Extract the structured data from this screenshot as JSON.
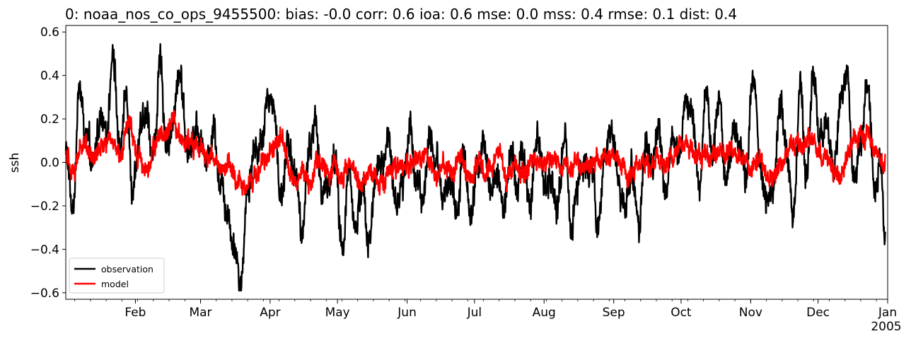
{
  "chart_data": {
    "type": "line",
    "title": "0: noaa_nos_co_ops_9455500: bias: -0.0  corr: 0.6  ioa: 0.6  mse: 0.0  mss: 0.4  rmse: 0.1  dist: 0.4",
    "xlabel": "",
    "ylabel": "ssh",
    "xlim": [
      "2004-01-01",
      "2005-01-01"
    ],
    "ylim": [
      -0.63,
      0.63
    ],
    "y_ticks": [
      -0.6,
      -0.4,
      -0.2,
      0.0,
      0.2,
      0.4,
      0.6
    ],
    "y_tick_labels": [
      "−0.6",
      "−0.4",
      "−0.2",
      "0.0",
      "0.2",
      "0.4",
      "0.6"
    ],
    "x_ticks": [
      {
        "date": "2004-02-01",
        "label": "Feb"
      },
      {
        "date": "2004-03-01",
        "label": "Mar"
      },
      {
        "date": "2004-04-01",
        "label": "Apr"
      },
      {
        "date": "2004-05-01",
        "label": "May"
      },
      {
        "date": "2004-06-01",
        "label": "Jun"
      },
      {
        "date": "2004-07-01",
        "label": "Jul"
      },
      {
        "date": "2004-08-01",
        "label": "Aug"
      },
      {
        "date": "2004-09-01",
        "label": "Sep"
      },
      {
        "date": "2004-10-01",
        "label": "Oct"
      },
      {
        "date": "2004-11-01",
        "label": "Nov"
      },
      {
        "date": "2004-12-01",
        "label": "Dec"
      },
      {
        "date": "2005-01-01",
        "label": "Jan"
      }
    ],
    "year_label": "2005",
    "grid": false,
    "legend_position": "lower-left",
    "series": [
      {
        "name": "observation",
        "color": "#000000",
        "x": [
          "2004-01-01",
          "2004-01-04",
          "2004-01-07",
          "2004-01-10",
          "2004-01-13",
          "2004-01-16",
          "2004-01-19",
          "2004-01-22",
          "2004-01-25",
          "2004-01-28",
          "2004-01-31",
          "2004-02-03",
          "2004-02-06",
          "2004-02-09",
          "2004-02-12",
          "2004-02-15",
          "2004-02-18",
          "2004-02-21",
          "2004-02-24",
          "2004-02-27",
          "2004-03-01",
          "2004-03-04",
          "2004-03-07",
          "2004-03-10",
          "2004-03-13",
          "2004-03-16",
          "2004-03-19",
          "2004-03-22",
          "2004-03-25",
          "2004-03-28",
          "2004-03-31",
          "2004-04-03",
          "2004-04-06",
          "2004-04-09",
          "2004-04-12",
          "2004-04-15",
          "2004-04-18",
          "2004-04-21",
          "2004-04-24",
          "2004-04-27",
          "2004-04-30",
          "2004-05-03",
          "2004-05-06",
          "2004-05-09",
          "2004-05-12",
          "2004-05-15",
          "2004-05-18",
          "2004-05-21",
          "2004-05-24",
          "2004-05-27",
          "2004-05-30",
          "2004-06-02",
          "2004-06-05",
          "2004-06-08",
          "2004-06-11",
          "2004-06-14",
          "2004-06-17",
          "2004-06-20",
          "2004-06-23",
          "2004-06-26",
          "2004-06-29",
          "2004-07-02",
          "2004-07-05",
          "2004-07-08",
          "2004-07-11",
          "2004-07-14",
          "2004-07-17",
          "2004-07-20",
          "2004-07-23",
          "2004-07-26",
          "2004-07-29",
          "2004-08-01",
          "2004-08-04",
          "2004-08-07",
          "2004-08-10",
          "2004-08-13",
          "2004-08-16",
          "2004-08-19",
          "2004-08-22",
          "2004-08-25",
          "2004-08-28",
          "2004-08-31",
          "2004-09-03",
          "2004-09-06",
          "2004-09-09",
          "2004-09-12",
          "2004-09-15",
          "2004-09-18",
          "2004-09-21",
          "2004-09-24",
          "2004-09-27",
          "2004-09-30",
          "2004-10-03",
          "2004-10-06",
          "2004-10-09",
          "2004-10-12",
          "2004-10-15",
          "2004-10-18",
          "2004-10-21",
          "2004-10-24",
          "2004-10-27",
          "2004-10-30",
          "2004-11-02",
          "2004-11-05",
          "2004-11-08",
          "2004-11-11",
          "2004-11-14",
          "2004-11-17",
          "2004-11-20",
          "2004-11-23",
          "2004-11-26",
          "2004-11-29",
          "2004-12-02",
          "2004-12-05",
          "2004-12-08",
          "2004-12-11",
          "2004-12-14",
          "2004-12-17",
          "2004-12-20",
          "2004-12-23",
          "2004-12-26",
          "2004-12-29",
          "2004-12-31"
        ],
        "y": [
          0.05,
          -0.22,
          0.35,
          0.1,
          -0.05,
          0.2,
          0.1,
          0.55,
          0.05,
          0.3,
          -0.1,
          0.12,
          0.2,
          0.05,
          0.42,
          0.1,
          0.2,
          0.43,
          0.05,
          0.15,
          0.1,
          0.0,
          0.18,
          -0.1,
          -0.2,
          -0.38,
          -0.55,
          -0.1,
          0.05,
          0.1,
          0.32,
          0.2,
          -0.15,
          0.1,
          -0.05,
          -0.32,
          0.05,
          0.2,
          -0.15,
          -0.1,
          0.0,
          -0.4,
          -0.05,
          -0.3,
          -0.1,
          -0.38,
          -0.05,
          0.0,
          0.12,
          -0.2,
          -0.1,
          0.15,
          -0.05,
          -0.15,
          0.1,
          0.0,
          -0.2,
          -0.12,
          -0.22,
          0.05,
          -0.2,
          -0.05,
          0.1,
          -0.15,
          -0.05,
          -0.2,
          0.0,
          -0.1,
          0.05,
          -0.2,
          0.12,
          -0.15,
          -0.05,
          -0.22,
          0.12,
          -0.28,
          -0.1,
          -0.05,
          0.0,
          -0.32,
          0.05,
          0.18,
          -0.1,
          -0.2,
          -0.05,
          -0.25,
          0.1,
          -0.05,
          0.2,
          -0.15,
          0.1,
          0.0,
          0.3,
          0.2,
          -0.12,
          0.28,
          0.05,
          0.3,
          -0.1,
          0.15,
          0.1,
          -0.05,
          0.44,
          0.0,
          -0.15,
          -0.1,
          0.3,
          0.05,
          -0.22,
          0.35,
          -0.05,
          0.45,
          0.1,
          0.18,
          -0.1,
          0.3,
          0.4,
          -0.05,
          0.05,
          0.38,
          -0.1,
          0.05,
          -0.32
        ],
        "noise_amplitude": 0.07
      },
      {
        "name": "model",
        "color": "#ff0000",
        "x": [
          "2004-01-01",
          "2004-01-05",
          "2004-01-09",
          "2004-01-13",
          "2004-01-17",
          "2004-01-21",
          "2004-01-25",
          "2004-01-29",
          "2004-02-02",
          "2004-02-06",
          "2004-02-10",
          "2004-02-14",
          "2004-02-18",
          "2004-02-22",
          "2004-02-26",
          "2004-03-01",
          "2004-03-05",
          "2004-03-09",
          "2004-03-13",
          "2004-03-17",
          "2004-03-21",
          "2004-03-25",
          "2004-03-29",
          "2004-04-02",
          "2004-04-06",
          "2004-04-10",
          "2004-04-14",
          "2004-04-18",
          "2004-04-22",
          "2004-04-26",
          "2004-04-30",
          "2004-05-04",
          "2004-05-08",
          "2004-05-12",
          "2004-05-16",
          "2004-05-20",
          "2004-05-24",
          "2004-05-28",
          "2004-06-01",
          "2004-06-05",
          "2004-06-09",
          "2004-06-13",
          "2004-06-17",
          "2004-06-21",
          "2004-06-25",
          "2004-06-29",
          "2004-07-03",
          "2004-07-07",
          "2004-07-11",
          "2004-07-15",
          "2004-07-19",
          "2004-07-23",
          "2004-07-27",
          "2004-07-31",
          "2004-08-04",
          "2004-08-08",
          "2004-08-12",
          "2004-08-16",
          "2004-08-20",
          "2004-08-24",
          "2004-08-28",
          "2004-09-01",
          "2004-09-05",
          "2004-09-09",
          "2004-09-13",
          "2004-09-17",
          "2004-09-21",
          "2004-09-25",
          "2004-09-29",
          "2004-10-03",
          "2004-10-07",
          "2004-10-11",
          "2004-10-15",
          "2004-10-19",
          "2004-10-23",
          "2004-10-27",
          "2004-10-31",
          "2004-11-04",
          "2004-11-08",
          "2004-11-12",
          "2004-11-16",
          "2004-11-20",
          "2004-11-24",
          "2004-11-28",
          "2004-12-02",
          "2004-12-06",
          "2004-12-10",
          "2004-12-14",
          "2004-12-18",
          "2004-12-22",
          "2004-12-26",
          "2004-12-31"
        ],
        "y": [
          0.05,
          -0.02,
          0.1,
          0.05,
          0.08,
          0.12,
          0.05,
          0.2,
          0.05,
          -0.02,
          0.1,
          0.12,
          0.15,
          0.1,
          0.08,
          0.05,
          0.02,
          -0.02,
          0.0,
          -0.08,
          -0.1,
          -0.05,
          0.0,
          0.05,
          0.15,
          -0.05,
          -0.05,
          -0.08,
          0.0,
          -0.03,
          -0.05,
          -0.05,
          -0.03,
          -0.08,
          -0.04,
          -0.1,
          -0.03,
          -0.05,
          -0.02,
          0.0,
          0.02,
          -0.05,
          -0.02,
          -0.06,
          0.0,
          -0.05,
          0.0,
          -0.02,
          0.03,
          -0.04,
          -0.02,
          -0.05,
          0.0,
          -0.02,
          0.02,
          0.0,
          -0.04,
          0.0,
          -0.02,
          0.0,
          0.02,
          0.0,
          -0.02,
          -0.03,
          0.0,
          -0.05,
          0.0,
          0.02,
          0.06,
          0.08,
          0.04,
          0.0,
          0.06,
          0.03,
          0.05,
          0.02,
          -0.02,
          0.0,
          -0.03,
          -0.06,
          0.0,
          0.05,
          0.08,
          0.12,
          0.05,
          0.02,
          -0.08,
          0.05,
          0.08,
          0.12,
          0.08,
          0.0
        ],
        "noise_amplitude": 0.045
      }
    ]
  }
}
